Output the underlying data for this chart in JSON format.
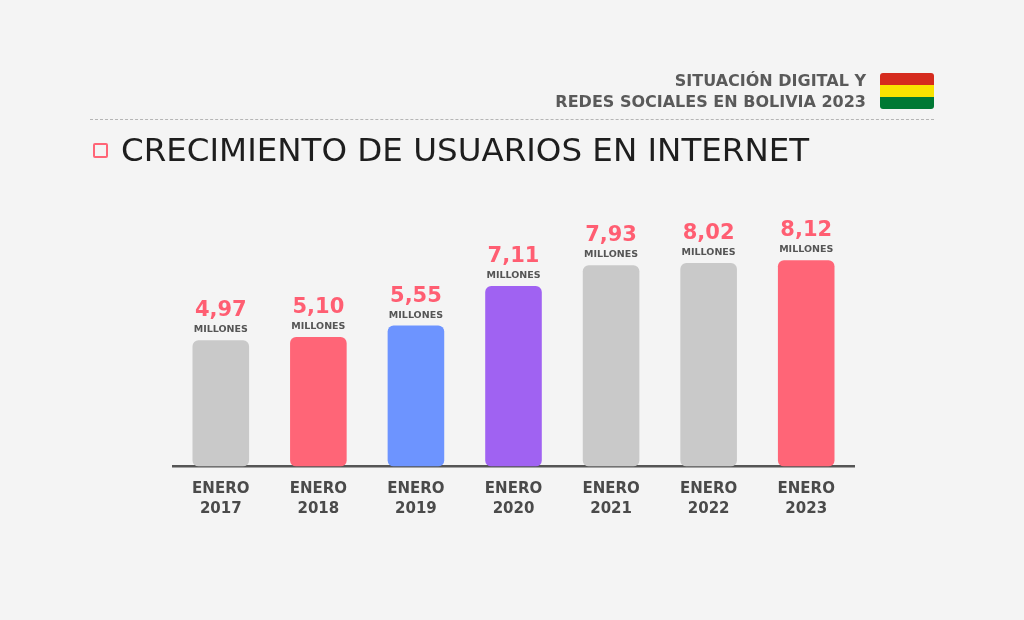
{
  "chart_data": {
    "type": "bar",
    "title": "CRECIMIENTO DE USUARIOS EN INTERNET",
    "subtitle": "SITUACIÓN DIGITAL Y\nREDES SOCIALES EN BOLIVIA 2023",
    "categories": [
      "ENERO\n2017",
      "ENERO\n2018",
      "ENERO\n2019",
      "ENERO\n2020",
      "ENERO\n2021",
      "ENERO\n2022",
      "ENERO\n2023"
    ],
    "values": [
      4.97,
      5.1,
      5.55,
      7.11,
      7.93,
      8.02,
      8.12
    ],
    "colors": [
      "#c9c9c9",
      "#ff6577",
      "#6d94ff",
      "#a062f2",
      "#c9c9c9",
      "#c9c9c9",
      "#ff6577"
    ],
    "value_labels": [
      "4,97",
      "5,10",
      "5,55",
      "7,11",
      "7,93",
      "8,02",
      "8,12"
    ],
    "annotations": [
      {
        "text": "MILLONES",
        "x": "ENERO\n2017",
        "y": 4.97
      },
      {
        "text": "MILLONES",
        "x": "ENERO\n2018",
        "y": 5.1
      },
      {
        "text": "MILLONES",
        "x": "ENERO\n2019",
        "y": 5.55
      },
      {
        "text": "MILLONES",
        "x": "ENERO\n2020",
        "y": 7.11
      },
      {
        "text": "MILLONES",
        "x": "ENERO\n2021",
        "y": 7.93
      },
      {
        "text": "MILLONES",
        "x": "ENERO\n2022",
        "y": 8.02
      },
      {
        "text": "MILLONES",
        "x": "ENERO\n2023",
        "y": 8.12
      }
    ],
    "tick_labels": "x",
    "grid": false
  }
}
